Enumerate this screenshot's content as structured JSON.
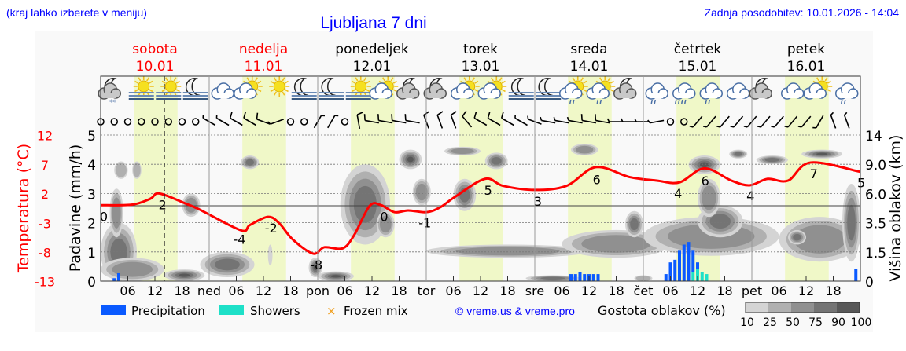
{
  "header": {
    "location_hint": "(kraj lahko izberete v meniju)",
    "title": "Ljubljana 7 dni",
    "last_update": "Zadnja posodobitev: 10.01.2026 - 14:04"
  },
  "days": [
    {
      "name": "sobota",
      "date": "10.01",
      "abbr": "",
      "weekend": true
    },
    {
      "name": "nedelja",
      "date": "11.01",
      "abbr": "ned",
      "weekend": true
    },
    {
      "name": "ponedeljek",
      "date": "12.01",
      "abbr": "pon",
      "weekend": false
    },
    {
      "name": "torek",
      "date": "13.01",
      "abbr": "tor",
      "weekend": false
    },
    {
      "name": "sreda",
      "date": "14.01",
      "abbr": "sre",
      "weekend": false
    },
    {
      "name": "četrtek",
      "date": "15.01",
      "abbr": "čet",
      "weekend": false
    },
    {
      "name": "petek",
      "date": "16.01",
      "abbr": "pet",
      "weekend": false
    }
  ],
  "hour_ticks": [
    "06",
    "12",
    "18"
  ],
  "colors": {
    "title": "#0000ff",
    "weekend": "#ff0000",
    "temperature": "#ff0000",
    "precipitation": "#0a5aff",
    "showers": "#1ee0c8",
    "frozen_mix": "#f0a020",
    "daylight": "#f0f8c8",
    "plot_bg": "#f9f9f9"
  },
  "chart_data": {
    "type": "meteogram",
    "now": "10.01 14:04",
    "daylight": [
      "07:20",
      "17:00"
    ],
    "axes": {
      "precipitation": {
        "label": "Padavine (mm/h)",
        "ticks": [
          "0",
          "1",
          "2",
          "3",
          "4",
          "5"
        ],
        "range": [
          0,
          5
        ]
      },
      "temperature": {
        "label": "Temperatura (°C)",
        "ticks": [
          "12",
          "7",
          "2",
          "-3",
          "-8",
          "-13"
        ],
        "range": [
          -13,
          12
        ]
      },
      "cloud_height": {
        "label": "Višina oblakov (km)",
        "ticks": [
          "0",
          "1.5",
          "3.5",
          "6.0",
          "9.0",
          "14"
        ]
      }
    },
    "weather_icons": [
      "moon-cloud-snow",
      "sun-fog",
      "sun-fog",
      "moon-fog",
      "cloud",
      "sun-cloud",
      "sun",
      "moon-fog",
      "moon-fog",
      "sun-fog",
      "sun-cloud",
      "moon-cloud",
      "moon-cloud",
      "sun-cloud",
      "sun-cloud",
      "moon-fog",
      "moon-fog",
      "sun-cloud-rain",
      "sun-cloud-rain",
      "moon-cloud",
      "cloud-rain",
      "cloud-rain-heavy",
      "cloud-rain",
      "cloud",
      "moon-cloud",
      "cloud",
      "sun-cloud",
      "cloud-rain"
    ],
    "wind": [
      [
        0,
        0
      ],
      [
        0,
        0
      ],
      [
        0,
        0
      ],
      [
        0,
        0
      ],
      [
        0,
        0
      ],
      [
        0,
        0
      ],
      [
        0,
        0
      ],
      [
        0,
        0
      ],
      [
        300,
        5
      ],
      [
        300,
        5
      ],
      [
        300,
        10
      ],
      [
        300,
        10
      ],
      [
        290,
        10
      ],
      [
        250,
        5
      ],
      [
        0,
        0
      ],
      [
        0,
        0
      ],
      [
        30,
        5
      ],
      [
        30,
        5
      ],
      [
        0,
        0
      ],
      [
        350,
        10
      ],
      [
        280,
        10
      ],
      [
        280,
        10
      ],
      [
        280,
        10
      ],
      [
        280,
        10
      ],
      [
        340,
        10
      ],
      [
        340,
        10
      ],
      [
        340,
        10
      ],
      [
        320,
        10
      ],
      [
        300,
        10
      ],
      [
        300,
        10
      ],
      [
        300,
        10
      ],
      [
        300,
        5
      ],
      [
        290,
        5
      ],
      [
        280,
        5
      ],
      [
        280,
        5
      ],
      [
        280,
        5
      ],
      [
        280,
        10
      ],
      [
        280,
        10
      ],
      [
        270,
        5
      ],
      [
        270,
        5
      ],
      [
        270,
        5
      ],
      [
        260,
        5
      ],
      [
        0,
        0
      ],
      [
        0,
        0
      ],
      [
        220,
        5
      ],
      [
        220,
        5
      ],
      [
        220,
        5
      ],
      [
        220,
        5
      ],
      [
        220,
        5
      ],
      [
        220,
        5
      ],
      [
        220,
        5
      ],
      [
        220,
        5
      ],
      [
        220,
        5
      ],
      [
        210,
        5
      ],
      [
        340,
        5
      ],
      [
        340,
        5
      ]
    ],
    "temperature": [
      [
        "10.01 00:00",
        0.1
      ],
      [
        "10.01 07:00",
        0.2
      ],
      [
        "10.01 11:00",
        1.2
      ],
      [
        "10.01 13:00",
        2.1
      ],
      [
        "10.01 19:00",
        0.3
      ],
      [
        "10.01 22:00",
        -0.7
      ],
      [
        "11.01 07:00",
        -4.2
      ],
      [
        "11.01 09:00",
        -3.3
      ],
      [
        "11.01 13:00",
        -1.9
      ],
      [
        "11.01 15:30",
        -3
      ],
      [
        "11.01 18:30",
        -5.8
      ],
      [
        "11.01 23:00",
        -8.2
      ],
      [
        "12.01 01:30",
        -7.1
      ],
      [
        "12.01 05:30",
        -7.3
      ],
      [
        "12.01 08:00",
        -5.1
      ],
      [
        "12.01 11:30",
        0
      ],
      [
        "12.01 14:00",
        0.1
      ],
      [
        "12.01 17:00",
        -1.1
      ],
      [
        "12.01 20:00",
        -0.8
      ],
      [
        "13.01 00:00",
        -1.1
      ],
      [
        "13.01 03:00",
        -0.3
      ],
      [
        "13.01 06:30",
        1.6
      ],
      [
        "13.01 13:00",
        4.6
      ],
      [
        "13.01 17:00",
        3.4
      ],
      [
        "14.01 00:00",
        2.7
      ],
      [
        "14.01 07:00",
        3.4
      ],
      [
        "14.01 13:30",
        6.6
      ],
      [
        "14.01 21:00",
        4.9
      ],
      [
        "15.01 03:00",
        4.3
      ],
      [
        "15.01 08:00",
        4.0
      ],
      [
        "15.01 13:30",
        6.4
      ],
      [
        "15.01 19:30",
        4.3
      ],
      [
        "15.01 23:30",
        3.5
      ],
      [
        "16.01 03:30",
        4.6
      ],
      [
        "16.01 08:00",
        4.3
      ],
      [
        "16.01 13:00",
        7.4
      ],
      [
        "17.01 00:00",
        5.8
      ]
    ],
    "temperature_labels": [
      [
        "10.01 00:00",
        "0"
      ],
      [
        "10.01 13:00",
        "2"
      ],
      [
        "11.01 06:00",
        "-4"
      ],
      [
        "11.01 13:00",
        "-2"
      ],
      [
        "11.01 23:00",
        "-8"
      ],
      [
        "12.01 14:00",
        "0"
      ],
      [
        "12.01 23:00",
        "-1"
      ],
      [
        "13.01 13:00",
        "5"
      ],
      [
        "14.01 00:00",
        "3"
      ],
      [
        "14.01 13:00",
        "6"
      ],
      [
        "15.01 07:00",
        "4"
      ],
      [
        "15.01 13:00",
        "6"
      ],
      [
        "15.01 23:00",
        "4"
      ],
      [
        "16.01 13:00",
        "7"
      ],
      [
        "16.01 23:30",
        "5"
      ]
    ],
    "precipitation": [
      [
        "10.01 03:00",
        0.1,
        0
      ],
      [
        "10.01 04:00",
        0.27,
        0
      ],
      [
        "14.01 08:00",
        0.24,
        0
      ],
      [
        "14.01 09:00",
        0.24,
        0
      ],
      [
        "14.01 10:00",
        0.31,
        0
      ],
      [
        "14.01 11:00",
        0.24,
        0
      ],
      [
        "14.01 12:00",
        0.24,
        0
      ],
      [
        "14.01 13:00",
        0.24,
        0
      ],
      [
        "14.01 14:00",
        0.24,
        0
      ],
      [
        "15.01 05:00",
        0.24,
        0
      ],
      [
        "15.01 06:00",
        0.64,
        0
      ],
      [
        "15.01 07:00",
        0.73,
        0
      ],
      [
        "15.01 08:00",
        1.04,
        0
      ],
      [
        "15.01 09:00",
        1.25,
        0
      ],
      [
        "15.01 10:00",
        1.34,
        0
      ],
      [
        "15.01 11:00",
        0.73,
        0.31
      ],
      [
        "15.01 12:00",
        0.21,
        0.43
      ],
      [
        "15.01 13:00",
        0,
        0.31
      ],
      [
        "15.01 14:00",
        0,
        0.24
      ],
      [
        "16.01 23:00",
        0.43,
        0
      ]
    ],
    "cloud_density": [
      [
        "10.01 00:00",
        "10.01 08:00",
        0,
        3.5,
        75
      ],
      [
        "10.01 02:00",
        "10.01 05:00",
        2.5,
        6.5,
        50
      ],
      [
        "10.01 03:00",
        "10.01 06:00",
        7.5,
        9.5,
        25
      ],
      [
        "10.01 07:00",
        "10.01 09:00",
        7.5,
        9.5,
        25
      ],
      [
        "10.01 00:00",
        "10.01 14:00",
        0,
        1.2,
        50
      ],
      [
        "10.01 14:00",
        "10.01 23:00",
        0,
        0.6,
        90
      ],
      [
        "10.01 18:00",
        "10.01 22:00",
        4,
        6,
        50
      ],
      [
        "10.01 22:00",
        "11.01 10:00",
        0.2,
        1.5,
        75
      ],
      [
        "11.01 07:00",
        "11.01 11:00",
        8.5,
        10.5,
        75
      ],
      [
        "11.01 13:00",
        "11.01 14:00",
        0.8,
        2,
        10
      ],
      [
        "11.01 22:00",
        "12.01 01:00",
        0.2,
        1.2,
        90
      ],
      [
        "12.01 00:00",
        "12.01 08:00",
        0,
        0.5,
        90
      ],
      [
        "12.01 05:00",
        "12.01 16:00",
        2,
        9,
        75
      ],
      [
        "12.01 13:00",
        "12.01 17:00",
        2.5,
        4.5,
        50
      ],
      [
        "12.01 18:00",
        "12.01 23:00",
        8.5,
        11.5,
        90
      ],
      [
        "12.01 21:00",
        "13.01 01:00",
        5,
        7.5,
        50
      ],
      [
        "13.01 06:00",
        "13.01 11:00",
        4.5,
        7.5,
        75
      ],
      [
        "13.01 04:00",
        "13.01 12:00",
        10.5,
        12,
        50
      ],
      [
        "13.01 13:00",
        "13.01 18:00",
        8.5,
        11,
        75
      ],
      [
        "14.01 08:00",
        "14.01 14:00",
        10.5,
        12.5,
        50
      ],
      [
        "13.01 00:00",
        "14.01 12:00",
        1.2,
        2,
        50
      ],
      [
        "14.01 06:00",
        "15.01 06:00",
        1.2,
        3,
        50
      ],
      [
        "14.01 20:00",
        "15.01 00:00",
        2.5,
        4.5,
        75
      ],
      [
        "15.01 00:00",
        "16.01 06:00",
        1.3,
        4,
        50
      ],
      [
        "15.01 12:00",
        "15.01 22:00",
        2.5,
        5,
        75
      ],
      [
        "15.01 12:00",
        "15.01 17:00",
        4,
        7.5,
        50
      ],
      [
        "16.01 06:00",
        "17.01 00:00",
        1,
        4,
        50
      ],
      [
        "16.01 08:00",
        "16.01 12:00",
        2,
        3,
        75
      ],
      [
        "16.01 20:00",
        "17.01 00:00",
        1,
        7,
        75
      ],
      [
        "15.01 10:00",
        "15.01 17:00",
        8,
        10.5,
        90
      ],
      [
        "15.01 19:00",
        "15.01 23:00",
        10,
        11.5,
        75
      ],
      [
        "16.01 01:00",
        "16.01 08:00",
        9,
        10.5,
        75
      ],
      [
        "16.01 11:00",
        "16.01 20:00",
        10,
        11.5,
        90
      ],
      [
        "13.01 22:00",
        "14.01 10:00",
        0,
        0.3,
        75
      ],
      [
        "14.01 22:00",
        "15.01 02:00",
        0,
        0.3,
        25
      ]
    ]
  },
  "legend": {
    "precipitation": "Precipitation",
    "showers": "Showers",
    "frozen_mix": "Frozen mix",
    "credit": "© vreme.us & vreme.pro",
    "cloud_density_label": "Gostota oblakov (%)",
    "cloud_density_levels": [
      "10",
      "25",
      "50",
      "75",
      "90",
      "100"
    ],
    "cloud_density_colors": [
      "#d4d4d4",
      "#b0b0b0",
      "#909090",
      "#747474",
      "#585858"
    ]
  }
}
